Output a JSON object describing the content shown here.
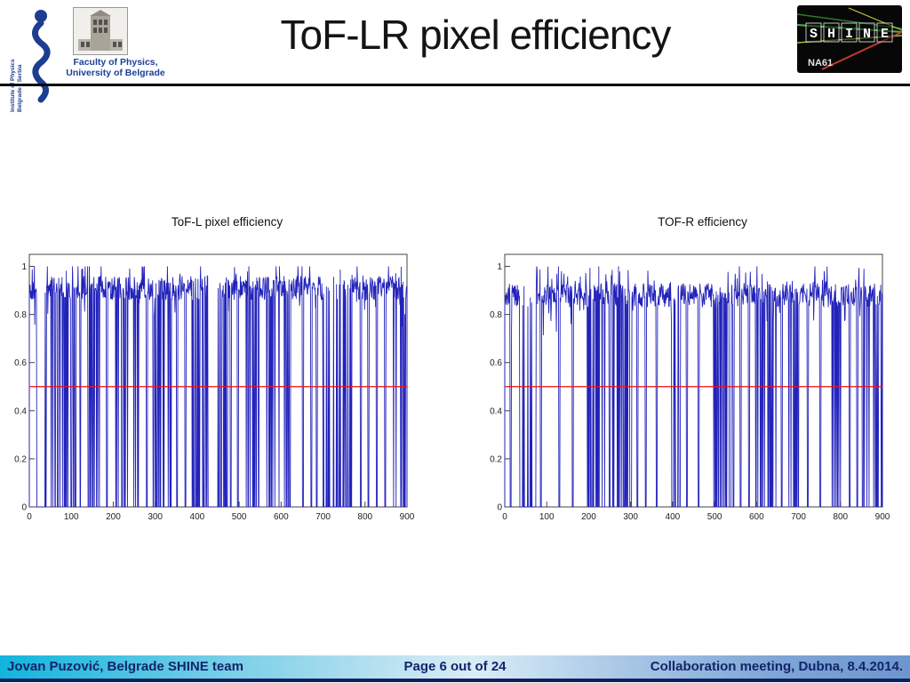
{
  "slide": {
    "title": "ToF-LR pixel efficiency",
    "logos": {
      "institute_line1": "Institute of Physics",
      "institute_line2": "Belgrade - Serbia",
      "faculty_line1": "Faculty of Physics,",
      "faculty_line2": "University of Belgrade",
      "shine_text": "SHINE",
      "shine_sub": "NA61"
    },
    "footer": {
      "left": "Jovan Puzović, Belgrade SHINE team",
      "center": "Page 6 out of 24",
      "right": "Collaboration meeting, Dubna, 8.4.2014."
    }
  },
  "chart_data": [
    {
      "type": "line",
      "title": "ToF-L pixel efficiency",
      "xlabel": "",
      "ylabel": "",
      "xlim": [
        0,
        900
      ],
      "ylim": [
        0,
        1.05
      ],
      "xticks": [
        0,
        100,
        200,
        300,
        400,
        500,
        600,
        700,
        800,
        900
      ],
      "yticks": [
        0,
        0.2,
        0.4,
        0.6,
        0.8,
        1
      ],
      "grid": false,
      "legend": false,
      "series_color": "#2222bb",
      "ref_line": {
        "y": 0.5,
        "color": "#ee1111"
      },
      "baseline": 0.91,
      "noise": 0.05,
      "noise_seed": 101,
      "dense_regions": [
        [
          18,
          40,
          0.85
        ],
        [
          52,
          92,
          0.3
        ],
        [
          105,
          130,
          0.2
        ],
        [
          140,
          175,
          0.3
        ],
        [
          195,
          235,
          0.35
        ],
        [
          248,
          268,
          0.35
        ],
        [
          293,
          338,
          0.3
        ],
        [
          388,
          472,
          0.5
        ],
        [
          430,
          452,
          0.85
        ],
        [
          512,
          548,
          0.3
        ],
        [
          565,
          600,
          0.3
        ],
        [
          608,
          622,
          0.5
        ],
        [
          700,
          768,
          0.8
        ],
        [
          868,
          898,
          0.25
        ]
      ],
      "dropouts": [
        100,
        185,
        280,
        352,
        372,
        480,
        497,
        652,
        672,
        685,
        790,
        808,
        828,
        848
      ]
    },
    {
      "type": "line",
      "title": "TOF-R efficiency",
      "xlabel": "",
      "ylabel": "",
      "xlim": [
        0,
        900
      ],
      "ylim": [
        0,
        1.05
      ],
      "xticks": [
        0,
        100,
        200,
        300,
        400,
        500,
        600,
        700,
        800,
        900
      ],
      "yticks": [
        0,
        0.2,
        0.4,
        0.6,
        0.8,
        1
      ],
      "grid": false,
      "legend": false,
      "series_color": "#2222bb",
      "ref_line": {
        "y": 0.5,
        "color": "#ee1111"
      },
      "baseline": 0.88,
      "noise": 0.05,
      "noise_seed": 202,
      "dense_regions": [
        [
          36,
          74,
          0.85
        ],
        [
          196,
          240,
          0.4
        ],
        [
          255,
          302,
          0.45
        ],
        [
          398,
          418,
          0.6
        ],
        [
          498,
          546,
          0.5
        ],
        [
          598,
          648,
          0.3
        ],
        [
          676,
          704,
          0.35
        ],
        [
          778,
          806,
          0.3
        ],
        [
          852,
          898,
          0.3
        ]
      ],
      "dropouts": [
        14,
        86,
        130,
        162,
        250,
        316,
        336,
        362,
        434,
        462,
        562,
        582,
        660,
        722,
        752,
        822,
        840
      ]
    }
  ]
}
